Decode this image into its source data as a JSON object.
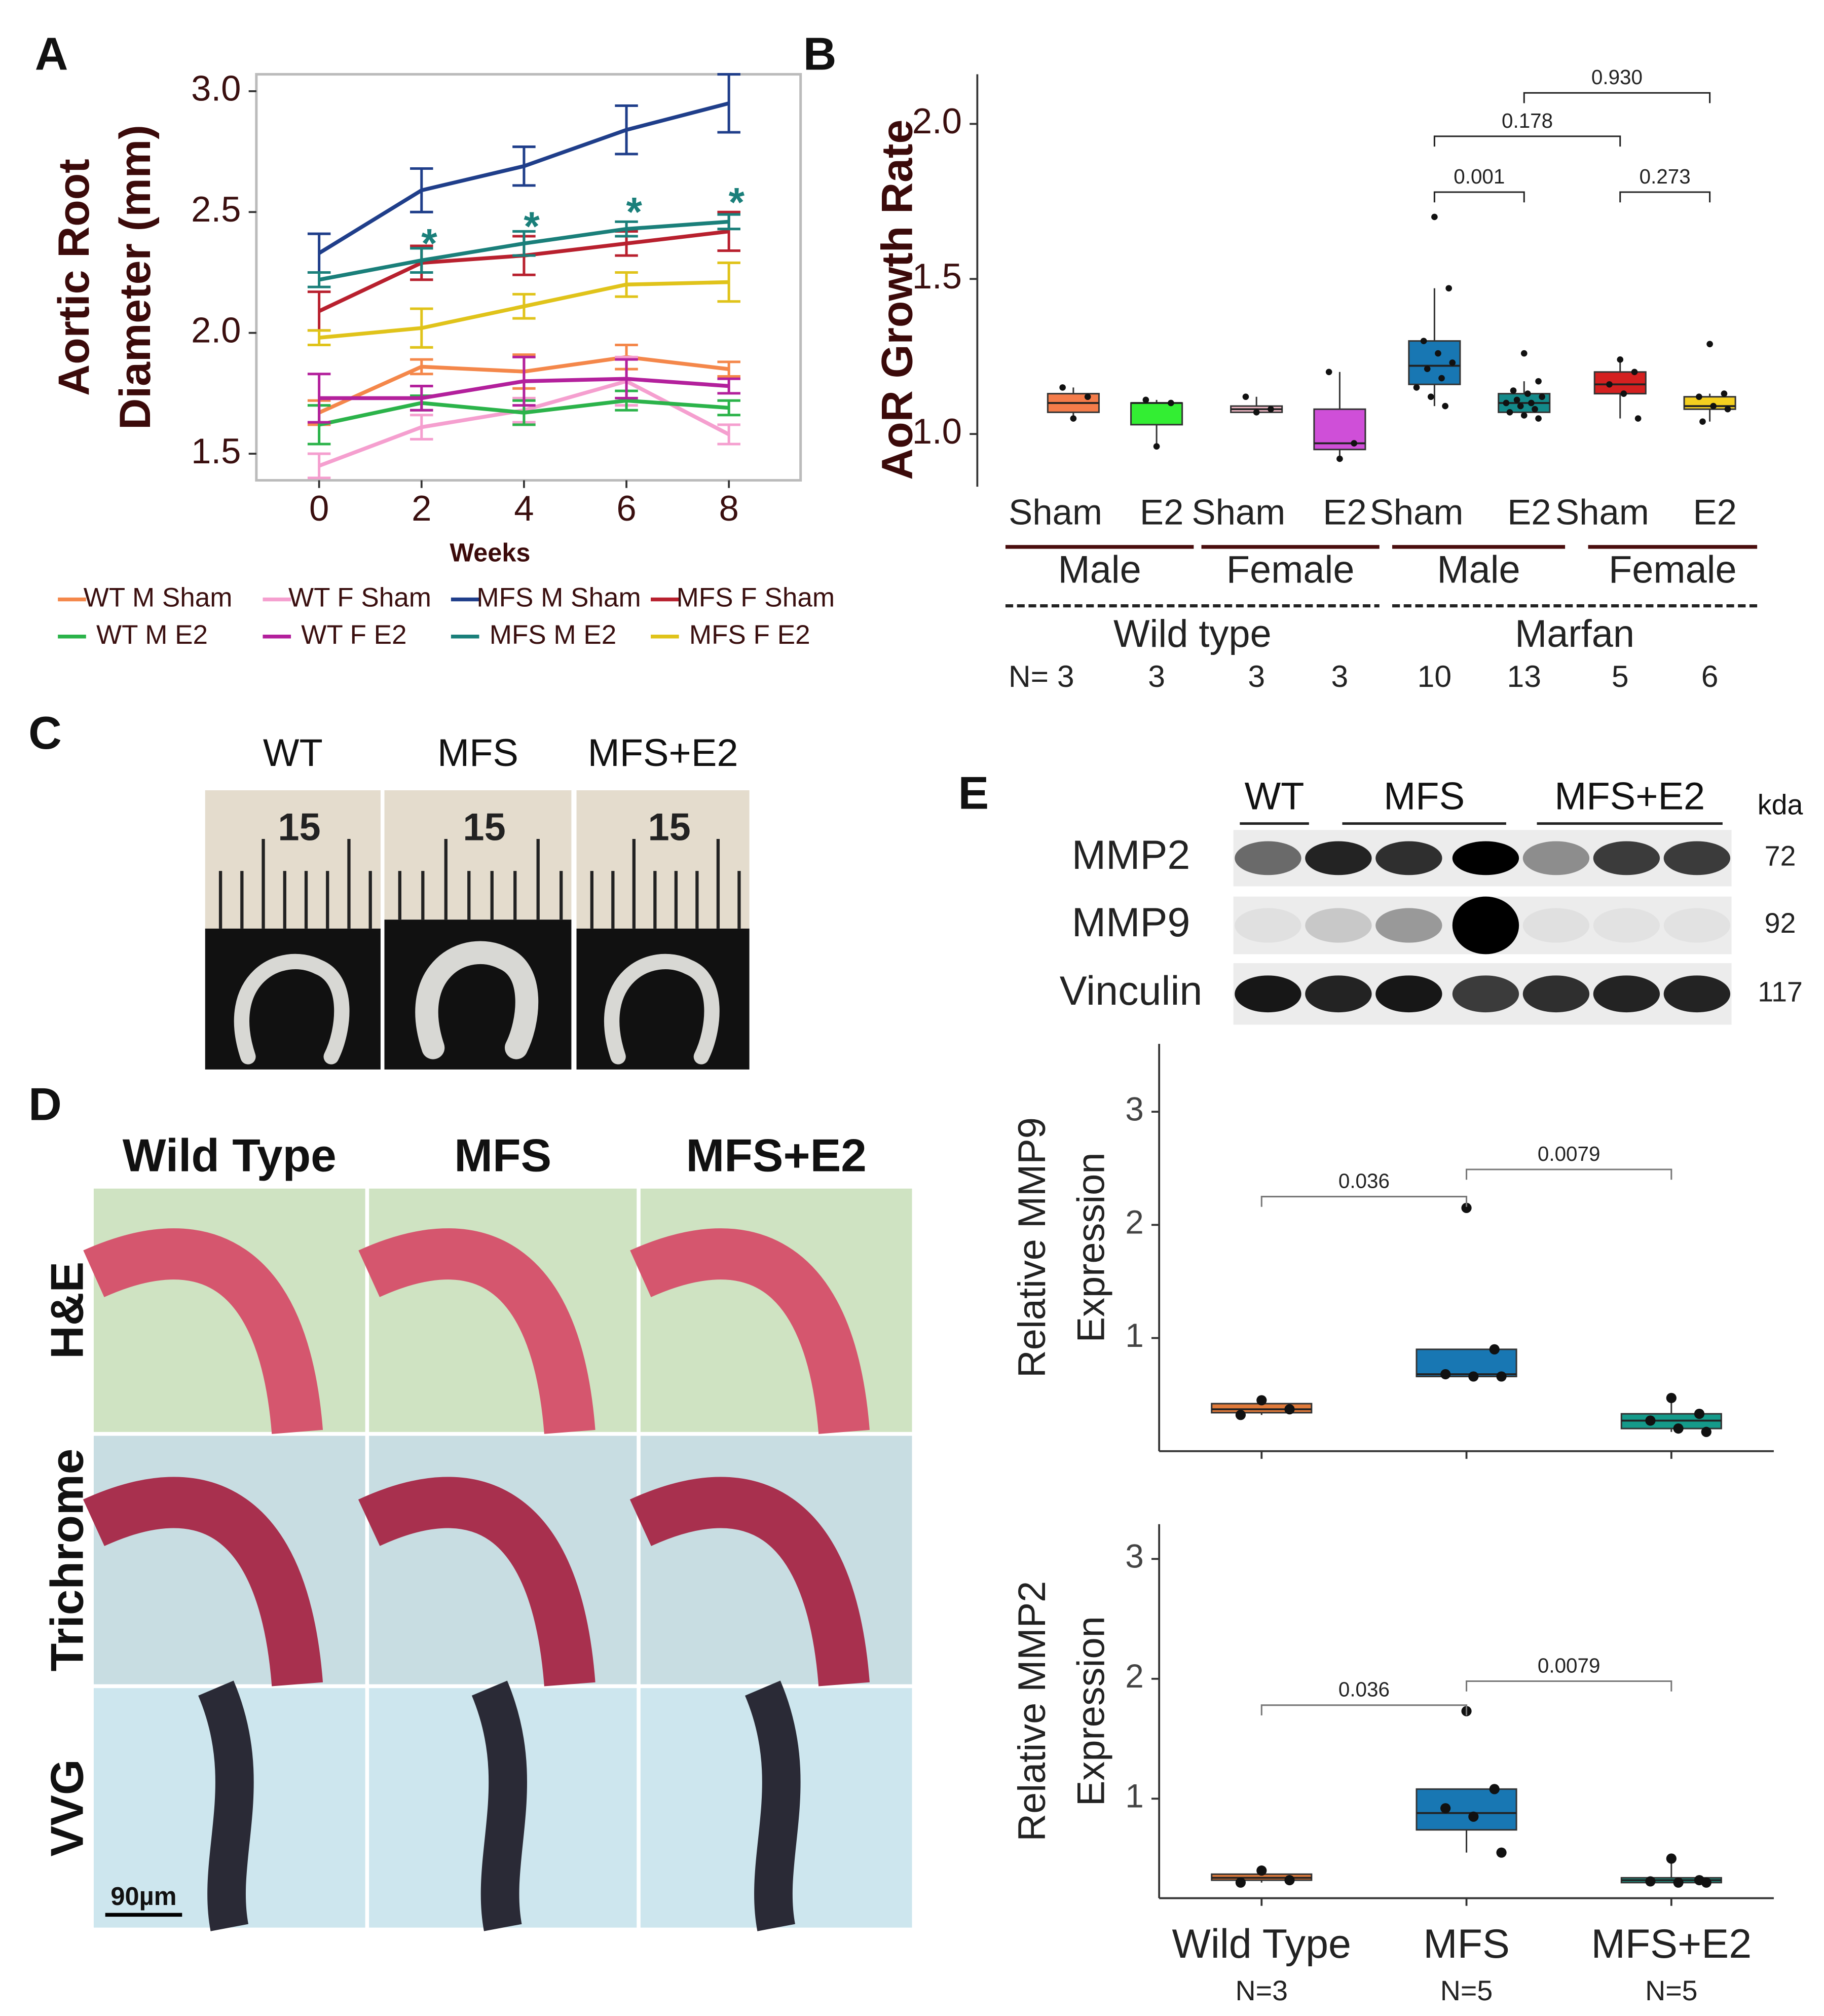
{
  "chart_data": [
    {
      "type": "line",
      "panel": "A",
      "ylabel": [
        "Aortic Root",
        "Diameter (mm)"
      ],
      "xlabel": "Weeks",
      "x": [
        0,
        2,
        4,
        6,
        8
      ],
      "xlim": [
        -1.225,
        9.4
      ],
      "xticks": [
        0,
        2,
        4,
        6,
        8
      ],
      "ylim": [
        1.39,
        3.07
      ],
      "yticks": [
        1.5,
        {
          "value": 2,
          "label": "2.0"
        },
        2.5,
        {
          "value": 3,
          "label": "3.0"
        }
      ],
      "series": [
        {
          "name": "WT M Sham",
          "color": "#f4874a",
          "values": [
            1.67,
            1.86,
            1.84,
            1.9,
            1.85
          ],
          "errors": [
            0.05,
            0.03,
            0.07,
            0.05,
            0.03
          ]
        },
        {
          "name": "WT F Sham",
          "color": "#f59fcf",
          "values": [
            1.45,
            1.61,
            1.68,
            1.8,
            1.58
          ],
          "errors": [
            0.05,
            0.05,
            0.05,
            0.1,
            0.04
          ]
        },
        {
          "name": "MFS M Sham",
          "color": "#1f3e8a",
          "values": [
            2.33,
            2.59,
            2.69,
            2.84,
            2.95
          ],
          "errors": [
            0.08,
            0.09,
            0.08,
            0.1,
            0.12
          ]
        },
        {
          "name": "MFS F Sham",
          "color": "#b8202e",
          "values": [
            2.09,
            2.29,
            2.32,
            2.37,
            2.42
          ],
          "errors": [
            0.08,
            0.07,
            0.08,
            0.05,
            0.08
          ]
        },
        {
          "name": "WT M E2",
          "color": "#2bb34a",
          "values": [
            1.62,
            1.71,
            1.67,
            1.72,
            1.69
          ],
          "errors": [
            0.08,
            0.03,
            0.05,
            0.04,
            0.03
          ]
        },
        {
          "name": "WT F E2",
          "color": "#b3209c",
          "values": [
            1.73,
            1.73,
            1.8,
            1.81,
            1.78
          ],
          "errors": [
            0.1,
            0.05,
            0.1,
            0.08,
            0.03
          ]
        },
        {
          "name": "MFS M E2",
          "color": "#1a7f7a",
          "values": [
            2.22,
            2.3,
            2.37,
            2.43,
            2.46
          ],
          "errors": [
            0.03,
            0.05,
            0.05,
            0.03,
            0.03
          ]
        },
        {
          "name": "MFS F E2",
          "color": "#e0c31a",
          "values": [
            1.98,
            2.02,
            2.11,
            2.2,
            2.21
          ],
          "errors": [
            0.03,
            0.08,
            0.05,
            0.05,
            0.08
          ]
        }
      ],
      "annotations": [
        {
          "text": "*",
          "x": 2,
          "y": 2.4
        },
        {
          "text": "*",
          "x": 4,
          "y": 2.47
        },
        {
          "text": "*",
          "x": 6,
          "y": 2.53
        },
        {
          "text": "*",
          "x": 8,
          "y": 2.57
        }
      ]
    },
    {
      "type": "box",
      "panel": "B",
      "ylabel": "AoR Growth Rate",
      "ylim": [
        0.83,
        2.16
      ],
      "yticks": [
        {
          "value": 1,
          "label": "1.0"
        },
        1.5,
        {
          "value": 2,
          "label": "2.0"
        }
      ],
      "categories": [
        "Sham",
        "E2",
        "Sham",
        "E2",
        "Sham",
        "E2",
        "Sham",
        "E2"
      ],
      "groups": [
        "Male",
        "Female",
        "Male",
        "Female"
      ],
      "supergroups": [
        "Wild type",
        "Marfan"
      ],
      "n_labels": [
        "N= 3",
        "3",
        "3",
        "3",
        "10",
        "13",
        "5",
        "6"
      ],
      "boxes": [
        {
          "color": "#f47c4a",
          "q1": 1.07,
          "median": 1.1,
          "q3": 1.13,
          "whisker_low": 1.05,
          "whisker_high": 1.15,
          "points": [
            1.05,
            1.12,
            1.15
          ]
        },
        {
          "color": "#33ee33",
          "q1": 1.03,
          "median": 1.1,
          "q3": 1.1,
          "whisker_low": 0.96,
          "whisker_high": 1.11,
          "points": [
            0.96,
            1.1,
            1.11
          ]
        },
        {
          "color": "#f9c0cd",
          "q1": 1.07,
          "median": 1.08,
          "q3": 1.09,
          "whisker_low": 1.07,
          "whisker_high": 1.12,
          "points": [
            1.07,
            1.08,
            1.12
          ]
        },
        {
          "color": "#cf4fd8",
          "q1": 0.95,
          "median": 0.97,
          "q3": 1.08,
          "whisker_low": 0.92,
          "whisker_high": 1.2,
          "points": [
            0.92,
            0.97,
            1.2
          ]
        },
        {
          "color": "#1877b3",
          "q1": 1.16,
          "median": 1.22,
          "q3": 1.3,
          "whisker_low": 1.09,
          "whisker_high": 1.47,
          "points": [
            1.7,
            1.47,
            1.3,
            1.26,
            1.23,
            1.21,
            1.18,
            1.15,
            1.12,
            1.09
          ]
        },
        {
          "color": "#138a8a",
          "q1": 1.07,
          "median": 1.1,
          "q3": 1.13,
          "whisker_low": 1.05,
          "whisker_high": 1.17,
          "points": [
            1.26,
            1.17,
            1.14,
            1.13,
            1.12,
            1.11,
            1.1,
            1.1,
            1.09,
            1.08,
            1.07,
            1.06,
            1.05
          ]
        },
        {
          "color": "#d42020",
          "q1": 1.13,
          "median": 1.16,
          "q3": 1.2,
          "whisker_low": 1.05,
          "whisker_high": 1.24,
          "points": [
            1.24,
            1.2,
            1.16,
            1.13,
            1.05
          ]
        },
        {
          "color": "#f5d020",
          "q1": 1.08,
          "median": 1.09,
          "q3": 1.12,
          "whisker_low": 1.04,
          "whisker_high": 1.13,
          "points": [
            1.29,
            1.13,
            1.12,
            1.09,
            1.08,
            1.04
          ]
        }
      ],
      "brackets": [
        {
          "from": 5,
          "to": 7,
          "y": 2.1,
          "label": "0.930"
        },
        {
          "from": 4,
          "to": 6,
          "y": 1.96,
          "label": "0.178"
        },
        {
          "from": 4,
          "to": 5,
          "y": 1.78,
          "label": "0.001"
        },
        {
          "from": 6,
          "to": 7,
          "y": 1.78,
          "label": "0.273"
        }
      ]
    },
    {
      "type": "box",
      "ylabel": [
        "Relative MMP9",
        "Expression"
      ],
      "ylim": [
        0,
        3.6
      ],
      "yticks": [
        1,
        2,
        3
      ],
      "categories": [
        "Wild Type",
        "MFS",
        "MFS+E2"
      ],
      "boxes": [
        {
          "color": "#e07a3a",
          "q1": 0.34,
          "median": 0.37,
          "q3": 0.42,
          "whisker_low": 0.32,
          "whisker_high": 0.45,
          "points": [
            0.45,
            0.37,
            0.32
          ]
        },
        {
          "color": "#1877b3",
          "q1": 0.66,
          "median": 0.68,
          "q3": 0.9,
          "whisker_low": 0.66,
          "whisker_high": 0.9,
          "points": [
            2.15,
            0.9,
            0.68,
            0.66,
            0.66
          ]
        },
        {
          "color": "#159a8a",
          "q1": 0.2,
          "median": 0.27,
          "q3": 0.33,
          "whisker_low": 0.17,
          "whisker_high": 0.47,
          "points": [
            0.47,
            0.33,
            0.27,
            0.2,
            0.17
          ]
        }
      ],
      "brackets": [
        {
          "from": 0,
          "to": 1,
          "y": 2.25,
          "label": "0.036"
        },
        {
          "from": 1,
          "to": 2,
          "y": 2.49,
          "label": "0.0079"
        }
      ]
    },
    {
      "type": "box",
      "ylabel": [
        "Relative MMP2",
        "Expression"
      ],
      "ylim": [
        0.17,
        3.29
      ],
      "yticks": [
        1,
        2,
        3
      ],
      "categories": [
        "Wild Type",
        "MFS",
        "MFS+E2"
      ],
      "n_labels": [
        "N=3",
        "N=5",
        "N=5"
      ],
      "boxes": [
        {
          "color": "#e07a3a",
          "q1": 0.32,
          "median": 0.34,
          "q3": 0.37,
          "whisker_low": 0.3,
          "whisker_high": 0.4,
          "points": [
            0.4,
            0.32,
            0.3
          ]
        },
        {
          "color": "#1877b3",
          "q1": 0.74,
          "median": 0.88,
          "q3": 1.08,
          "whisker_low": 0.55,
          "whisker_high": 1.08,
          "points": [
            1.73,
            1.08,
            0.92,
            0.85,
            0.55
          ]
        },
        {
          "color": "#159a8a",
          "q1": 0.3,
          "median": 0.32,
          "q3": 0.34,
          "whisker_low": 0.3,
          "whisker_high": 0.5,
          "points": [
            0.5,
            0.32,
            0.31,
            0.3,
            0.3
          ]
        }
      ],
      "brackets": [
        {
          "from": 0,
          "to": 1,
          "y": 1.78,
          "label": "0.036"
        },
        {
          "from": 1,
          "to": 2,
          "y": 1.98,
          "label": "0.0079"
        }
      ]
    }
  ],
  "panels": {
    "C": {
      "letter": "C",
      "columns": [
        "WT",
        "MFS",
        "MFS+E2"
      ],
      "ruler": [
        "15",
        "15",
        "15"
      ]
    },
    "D": {
      "letter": "D",
      "columns": [
        "Wild Type",
        "MFS",
        "MFS+E2"
      ],
      "rows": [
        "H&E",
        "Trichrome",
        "VVG"
      ],
      "scale": "90µm"
    },
    "E": {
      "letter": "E",
      "groups": [
        "WT",
        "MFS",
        "MFS+E2"
      ],
      "unit": "kda",
      "rows": [
        "MMP2",
        "MMP9",
        "Vinculin"
      ],
      "sizes": [
        "72",
        "92",
        "117"
      ]
    }
  }
}
